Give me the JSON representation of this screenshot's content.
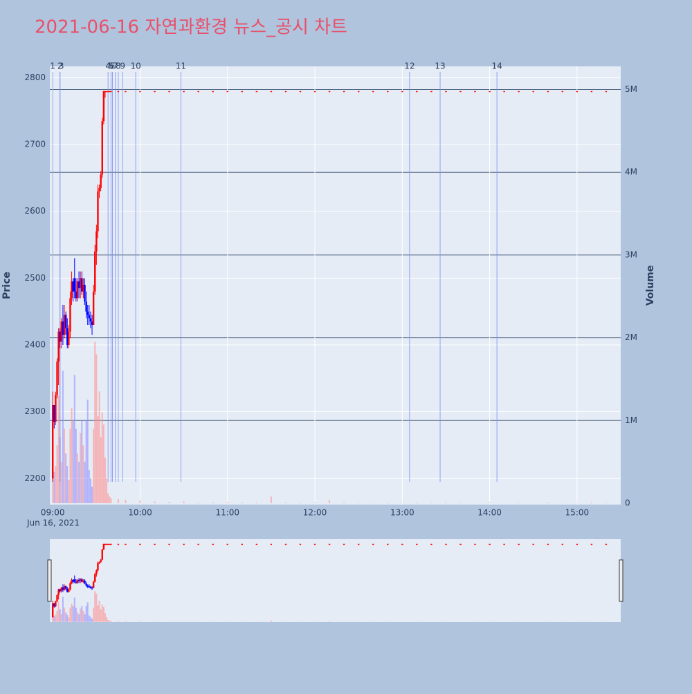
{
  "chart_data": {
    "type": "candlestick",
    "title": "2021-06-16 자연과환경 뉴스_공시 차트",
    "ylabel": "Price",
    "y2label": "Volume",
    "x_date_label": "Jun 16, 2021",
    "up_color": "#ff0000",
    "down_color": "#0000ff",
    "xlim": [
      "08:58",
      "15:30"
    ],
    "xticks": [
      "09:00",
      "10:00",
      "11:00",
      "12:00",
      "13:00",
      "14:00",
      "15:00"
    ],
    "ylim": [
      2161,
      2817
    ],
    "yticks": [
      2200,
      2300,
      2400,
      2500,
      2600,
      2700,
      2800
    ],
    "y2lim": [
      -17000,
      5280000
    ],
    "y2ticks": [
      0,
      {
        "value": 1000000,
        "label": "1M"
      },
      {
        "value": 2000000,
        "label": "2M"
      },
      {
        "value": 3000000,
        "label": "3M"
      },
      {
        "value": 4000000,
        "label": "4M"
      },
      {
        "value": 5000000,
        "label": "5M"
      }
    ],
    "news": [
      {
        "label": "1",
        "x": "09:00"
      },
      {
        "label": "2",
        "x": "09:05"
      },
      {
        "label": "3",
        "x": "09:05"
      },
      {
        "label": "4",
        "x": "09:38"
      },
      {
        "label": "5",
        "x": "09:40"
      },
      {
        "label": "6",
        "x": "09:41"
      },
      {
        "label": "7",
        "x": "09:43"
      },
      {
        "label": "8",
        "x": "09:45"
      },
      {
        "label": "9",
        "x": "09:48"
      },
      {
        "label": "10",
        "x": "09:57"
      },
      {
        "label": "11",
        "x": "10:28"
      },
      {
        "label": "12",
        "x": "13:05"
      },
      {
        "label": "13",
        "x": "13:26"
      },
      {
        "label": "14",
        "x": "14:05"
      }
    ],
    "x": [
      "09:00",
      "09:01",
      "09:02",
      "09:03",
      "09:04",
      "09:05",
      "09:06",
      "09:07",
      "09:08",
      "09:09",
      "09:10",
      "09:11",
      "09:12",
      "09:13",
      "09:14",
      "09:15",
      "09:16",
      "09:17",
      "09:18",
      "09:19",
      "09:20",
      "09:21",
      "09:22",
      "09:23",
      "09:24",
      "09:25",
      "09:26",
      "09:27",
      "09:28",
      "09:29",
      "09:30",
      "09:31",
      "09:32",
      "09:33",
      "09:34",
      "09:35",
      "09:36",
      "09:37",
      "09:38",
      "09:39",
      "09:40",
      "09:45",
      "09:50",
      "10:00",
      "10:10",
      "10:20",
      "10:30",
      "10:40",
      "10:50",
      "11:00",
      "11:10",
      "11:20",
      "11:30",
      "11:40",
      "11:50",
      "12:00",
      "12:10",
      "12:20",
      "12:30",
      "12:40",
      "12:50",
      "13:00",
      "13:10",
      "13:20",
      "13:30",
      "13:40",
      "13:50",
      "14:00",
      "14:10",
      "14:20",
      "14:30",
      "14:40",
      "14:50",
      "15:00",
      "15:10",
      "15:20"
    ],
    "open": [
      2200,
      2310,
      2285,
      2325,
      2375,
      2420,
      2405,
      2435,
      2415,
      2445,
      2425,
      2400,
      2420,
      2470,
      2495,
      2500,
      2480,
      2470,
      2495,
      2485,
      2500,
      2480,
      2490,
      2465,
      2450,
      2445,
      2440,
      2435,
      2430,
      2480,
      2540,
      2570,
      2630,
      2635,
      2655,
      2735,
      2780,
      2780,
      2780,
      2780,
      2780,
      2780,
      2780,
      2780,
      2780,
      2780,
      2780,
      2780,
      2780,
      2780,
      2780,
      2780,
      2780,
      2780,
      2780,
      2780,
      2780,
      2780,
      2780,
      2780,
      2780,
      2780,
      2780,
      2780,
      2780,
      2780,
      2780,
      2780,
      2780,
      2780,
      2780,
      2780,
      2780,
      2780,
      2780,
      2780
    ],
    "high": [
      2330,
      2310,
      2330,
      2380,
      2425,
      2425,
      2440,
      2460,
      2460,
      2450,
      2440,
      2430,
      2480,
      2510,
      2500,
      2530,
      2500,
      2500,
      2510,
      2510,
      2510,
      2500,
      2500,
      2480,
      2460,
      2460,
      2450,
      2445,
      2490,
      2550,
      2580,
      2640,
      2640,
      2660,
      2740,
      2780,
      2780,
      2780,
      2780,
      2780,
      2780,
      2780,
      2780,
      2780,
      2780,
      2780,
      2780,
      2780,
      2780,
      2780,
      2780,
      2780,
      2780,
      2780,
      2780,
      2780,
      2780,
      2780,
      2780,
      2780,
      2780,
      2780,
      2780,
      2780,
      2780,
      2780,
      2780,
      2780,
      2780,
      2780,
      2780,
      2780,
      2780,
      2780,
      2780,
      2780
    ],
    "low": [
      2195,
      2275,
      2280,
      2320,
      2340,
      2395,
      2395,
      2400,
      2410,
      2415,
      2395,
      2395,
      2410,
      2460,
      2465,
      2470,
      2465,
      2465,
      2470,
      2470,
      2475,
      2470,
      2460,
      2440,
      2430,
      2430,
      2425,
      2415,
      2430,
      2475,
      2520,
      2560,
      2620,
      2630,
      2650,
      2730,
      2770,
      2780,
      2780,
      2780,
      2780,
      2780,
      2780,
      2780,
      2780,
      2780,
      2780,
      2780,
      2780,
      2780,
      2780,
      2780,
      2780,
      2780,
      2780,
      2780,
      2780,
      2780,
      2780,
      2780,
      2780,
      2780,
      2780,
      2780,
      2780,
      2780,
      2780,
      2780,
      2780,
      2780,
      2780,
      2780,
      2780,
      2780,
      2780,
      2780
    ],
    "close": [
      2310,
      2285,
      2325,
      2375,
      2420,
      2405,
      2435,
      2415,
      2445,
      2425,
      2400,
      2420,
      2470,
      2495,
      2480,
      2480,
      2470,
      2495,
      2485,
      2500,
      2480,
      2490,
      2465,
      2450,
      2445,
      2440,
      2435,
      2430,
      2480,
      2540,
      2570,
      2630,
      2635,
      2655,
      2735,
      2780,
      2780,
      2780,
      2780,
      2780,
      2780,
      2780,
      2780,
      2780,
      2780,
      2780,
      2780,
      2780,
      2780,
      2780,
      2780,
      2780,
      2780,
      2780,
      2780,
      2780,
      2780,
      2780,
      2780,
      2780,
      2780,
      2780,
      2780,
      2780,
      2780,
      2780,
      2780,
      2780,
      2780,
      2780,
      2780,
      2780,
      2780,
      2780,
      2780,
      2780
    ],
    "volume": [
      620000,
      380000,
      450000,
      700000,
      1300000,
      800000,
      500000,
      1600000,
      900000,
      600000,
      450000,
      280000,
      900000,
      1150000,
      1000000,
      1550000,
      900000,
      600000,
      500000,
      850000,
      1000000,
      700000,
      500000,
      1000000,
      1250000,
      400000,
      300000,
      200000,
      900000,
      1950000,
      1800000,
      1050000,
      1350000,
      800000,
      1100000,
      950000,
      550000,
      300000,
      120000,
      80000,
      60000,
      50000,
      40000,
      30000,
      20000,
      15000,
      20000,
      10000,
      10000,
      15000,
      10000,
      10000,
      80000,
      10000,
      10000,
      10000,
      40000,
      10000,
      5000,
      5000,
      10000,
      5000,
      10000,
      5000,
      10000,
      5000,
      5000,
      10000,
      5000,
      5000,
      5000,
      10000,
      5000,
      5000,
      10000,
      5000
    ]
  }
}
